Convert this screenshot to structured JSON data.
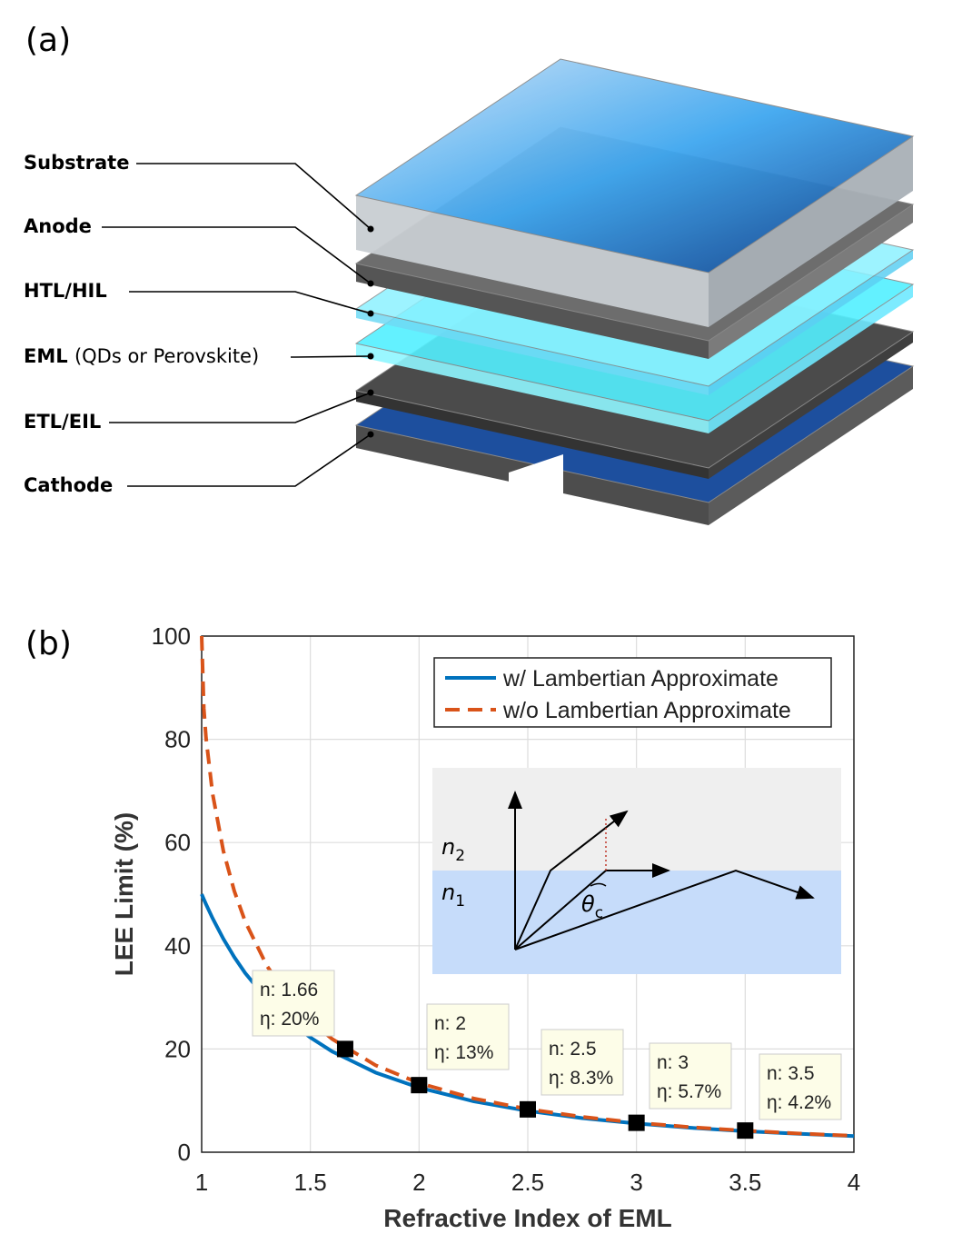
{
  "panel_a": {
    "label": "(a)",
    "layers": [
      {
        "name": "Substrate"
      },
      {
        "name": "Anode"
      },
      {
        "name": "HTL/HIL"
      },
      {
        "name": "EML",
        "note": "(QDs or Perovskite)"
      },
      {
        "name": "ETL/EIL"
      },
      {
        "name": "Cathode"
      }
    ]
  },
  "chart_data": {
    "type": "line",
    "label": "(b)",
    "xlabel": "Refractive Index of EML",
    "ylabel": "LEE Limit (%)",
    "xlim": [
      1,
      4
    ],
    "ylim": [
      0,
      100
    ],
    "xticks": [
      1,
      1.5,
      2,
      2.5,
      3,
      3.5,
      4
    ],
    "yticks": [
      0,
      20,
      40,
      60,
      80,
      100
    ],
    "grid": true,
    "legend": "upper right",
    "x": [
      1,
      1.01,
      1.02,
      1.05,
      1.1,
      1.15,
      1.2,
      1.3,
      1.4,
      1.5,
      1.6,
      1.8,
      2,
      2.25,
      2.5,
      2.75,
      3,
      3.25,
      3.5,
      3.75,
      4
    ],
    "series": [
      {
        "name": "w/ Lambertian Approximate",
        "color": "#0072bd",
        "dash": false,
        "values": [
          50,
          49.01,
          48.06,
          45.35,
          41.32,
          37.81,
          34.72,
          29.59,
          25.51,
          22.22,
          19.53,
          15.43,
          12.5,
          9.88,
          8,
          6.61,
          5.56,
          4.73,
          4.08,
          3.56,
          3.13
        ]
      },
      {
        "name": "w/o Lambertian Approximate",
        "color": "#d95319",
        "dash": true,
        "values": [
          100,
          85.96,
          80.3,
          69.51,
          58.34,
          50.61,
          44.72,
          36.1,
          30.01,
          25.46,
          21.94,
          16.85,
          13.4,
          10.42,
          8.35,
          6.85,
          5.72,
          4.85,
          4.17,
          3.62,
          3.18
        ]
      }
    ],
    "points": {
      "x": [
        1.66,
        2,
        2.5,
        3,
        3.5
      ],
      "values": [
        20,
        13,
        8.3,
        5.7,
        4.2
      ],
      "labels": [
        [
          "n: 1.66",
          "η: 20%"
        ],
        [
          "n: 2",
          "η: 13%"
        ],
        [
          "n: 2.5",
          "η: 8.3%"
        ],
        [
          "n: 3",
          "η: 5.7%"
        ],
        [
          "n: 3.5",
          "η: 4.2%"
        ]
      ]
    },
    "inset_labels": [
      {
        "text": "n",
        "sub": "2"
      },
      {
        "text": "n",
        "sub": "1"
      },
      {
        "text": "θ",
        "sub": "c"
      }
    ]
  }
}
